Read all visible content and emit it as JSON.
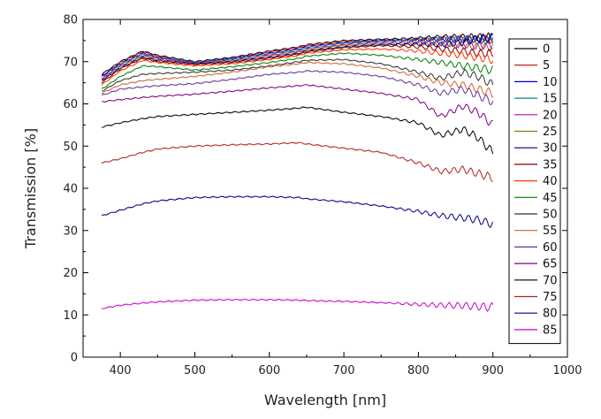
{
  "chart_data": {
    "type": "line",
    "title": "",
    "xlabel": "Wavelength [nm]",
    "ylabel": "Transmission [%]",
    "xlim": [
      350,
      1000
    ],
    "ylim": [
      0,
      80
    ],
    "x_ticks": [
      "400",
      "500",
      "600",
      "700",
      "800",
      "900",
      "1000"
    ],
    "y_ticks": [
      "0",
      "10",
      "20",
      "30",
      "40",
      "50",
      "60",
      "70",
      "80"
    ],
    "grid": false,
    "legend_position": "right",
    "x": [
      375,
      400,
      430,
      450,
      500,
      550,
      600,
      640,
      650,
      700,
      750,
      800,
      830,
      860,
      880,
      900
    ],
    "series": [
      {
        "name": "0",
        "color": "#000000",
        "values": [
          67.0,
          70.0,
          72.5,
          71.5,
          70.0,
          71.0,
          72.5,
          73.5,
          74.0,
          75.0,
          75.3,
          75.5,
          75.8,
          75.8,
          75.8,
          75.8
        ]
      },
      {
        "name": "5",
        "color": "#cc0000",
        "values": [
          66.5,
          69.8,
          72.3,
          71.3,
          69.8,
          70.8,
          72.3,
          73.3,
          73.8,
          74.8,
          75.0,
          75.3,
          75.5,
          75.5,
          75.3,
          75.3
        ]
      },
      {
        "name": "10",
        "color": "#0000cc",
        "values": [
          66.5,
          69.5,
          72.0,
          71.0,
          69.8,
          70.8,
          72.0,
          73.0,
          73.5,
          74.5,
          75.0,
          75.2,
          75.3,
          75.3,
          75.3,
          75.5
        ]
      },
      {
        "name": "15",
        "color": "#008b8b",
        "values": [
          66.0,
          69.3,
          71.8,
          71.0,
          69.8,
          70.5,
          71.8,
          72.8,
          73.3,
          74.3,
          74.8,
          75.0,
          75.2,
          75.2,
          75.0,
          75.0
        ]
      },
      {
        "name": "20",
        "color": "#cc00cc",
        "values": [
          65.8,
          69.0,
          71.5,
          70.8,
          69.6,
          70.3,
          71.5,
          72.5,
          73.0,
          74.0,
          74.5,
          74.5,
          74.3,
          74.0,
          73.8,
          74.0
        ]
      },
      {
        "name": "25",
        "color": "#808000",
        "values": [
          65.5,
          68.8,
          71.3,
          70.5,
          69.5,
          70.2,
          71.3,
          72.3,
          72.8,
          73.8,
          74.2,
          74.3,
          74.0,
          73.8,
          73.5,
          73.5
        ]
      },
      {
        "name": "30",
        "color": "#000080",
        "values": [
          65.5,
          68.5,
          71.0,
          70.3,
          69.5,
          70.0,
          71.0,
          72.0,
          72.5,
          73.5,
          74.0,
          74.2,
          74.0,
          74.5,
          75.5,
          75.8
        ]
      },
      {
        "name": "35",
        "color": "#8b0000",
        "values": [
          65.0,
          68.3,
          70.8,
          70.0,
          69.3,
          69.8,
          70.8,
          71.8,
          72.3,
          73.3,
          73.8,
          73.5,
          73.0,
          72.5,
          72.0,
          72.0
        ]
      },
      {
        "name": "40",
        "color": "#ff3300",
        "values": [
          64.5,
          67.8,
          70.3,
          69.8,
          69.0,
          69.5,
          70.5,
          71.5,
          72.0,
          72.8,
          73.0,
          72.5,
          72.0,
          71.5,
          71.0,
          70.5
        ]
      },
      {
        "name": "45",
        "color": "#008000",
        "values": [
          63.5,
          66.5,
          69.0,
          68.8,
          68.0,
          68.8,
          69.8,
          70.8,
          71.3,
          72.0,
          71.5,
          70.5,
          69.8,
          69.0,
          68.5,
          68.0
        ]
      },
      {
        "name": "50",
        "color": "#333333",
        "values": [
          63.0,
          65.5,
          67.0,
          67.2,
          67.5,
          68.0,
          69.0,
          70.0,
          70.3,
          70.5,
          69.5,
          67.5,
          66.0,
          67.5,
          66.5,
          64.5
        ]
      },
      {
        "name": "55",
        "color": "#cc6633",
        "values": [
          62.5,
          64.5,
          65.5,
          65.8,
          66.5,
          67.5,
          68.8,
          69.5,
          69.8,
          69.5,
          68.5,
          66.5,
          65.0,
          64.5,
          63.5,
          62.5
        ]
      },
      {
        "name": "60",
        "color": "#663399",
        "values": [
          62.0,
          63.5,
          64.0,
          64.3,
          64.8,
          65.8,
          67.0,
          67.5,
          67.8,
          67.5,
          66.5,
          64.5,
          62.5,
          63.5,
          62.0,
          60.5
        ]
      },
      {
        "name": "65",
        "color": "#800080",
        "values": [
          60.5,
          61.0,
          61.5,
          61.8,
          62.3,
          63.0,
          63.8,
          64.3,
          64.5,
          63.5,
          62.5,
          61.0,
          57.0,
          59.5,
          58.0,
          55.0
        ]
      },
      {
        "name": "70",
        "color": "#000000",
        "values": [
          54.5,
          55.5,
          56.5,
          57.0,
          57.5,
          58.0,
          58.5,
          59.0,
          59.2,
          58.0,
          57.0,
          55.5,
          52.5,
          54.0,
          52.0,
          48.5
        ]
      },
      {
        "name": "75",
        "color": "#b22222",
        "values": [
          46.0,
          47.0,
          48.5,
          49.3,
          50.0,
          50.3,
          50.5,
          50.8,
          50.5,
          49.5,
          48.5,
          46.0,
          44.0,
          44.5,
          43.5,
          42.5
        ]
      },
      {
        "name": "80",
        "color": "#00008b",
        "values": [
          33.5,
          34.8,
          36.3,
          37.0,
          37.8,
          38.0,
          38.0,
          37.8,
          37.5,
          36.8,
          35.8,
          34.5,
          33.5,
          33.0,
          32.5,
          31.5
        ]
      },
      {
        "name": "85",
        "color": "#cc00cc",
        "values": [
          11.5,
          12.3,
          12.8,
          13.1,
          13.5,
          13.6,
          13.6,
          13.5,
          13.4,
          13.2,
          12.9,
          12.5,
          12.3,
          12.2,
          12.0,
          11.8
        ]
      }
    ]
  }
}
